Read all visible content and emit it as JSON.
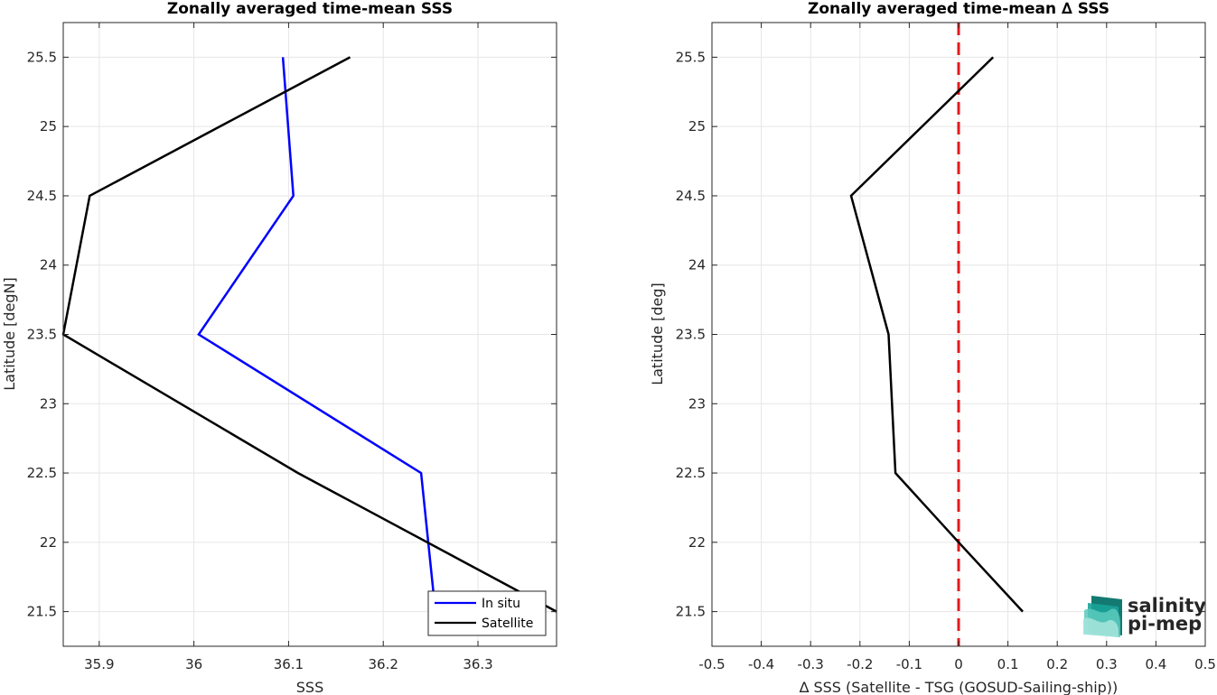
{
  "chart_data": [
    {
      "type": "line",
      "title": "Zonally averaged time-mean SSS",
      "xlabel": "SSS",
      "ylabel": "Latitude [degN]",
      "xlim": [
        35.862,
        36.383
      ],
      "ylim": [
        21.25,
        25.75
      ],
      "x_ticks": [
        "35.9",
        "36",
        "36.1",
        "36.2",
        "36.3"
      ],
      "y_ticks": [
        "21.5",
        "22",
        "22.5",
        "23",
        "23.5",
        "24",
        "24.5",
        "25",
        "25.5"
      ],
      "grid": true,
      "legend_position": "bottom-right",
      "series": [
        {
          "name": "In situ",
          "color": "#0000ff",
          "points": [
            [
              36.255,
              21.5
            ],
            [
              36.24,
              22.5
            ],
            [
              36.005,
              23.5
            ],
            [
              36.105,
              24.5
            ],
            [
              36.094,
              25.5
            ]
          ]
        },
        {
          "name": "Satellite",
          "color": "#000000",
          "points": [
            [
              36.383,
              21.5
            ],
            [
              36.11,
              22.5
            ],
            [
              35.862,
              23.5
            ],
            [
              35.89,
              24.5
            ],
            [
              36.165,
              25.5
            ]
          ]
        }
      ]
    },
    {
      "type": "line",
      "title": "Zonally averaged time-mean ∆ SSS",
      "xlabel": "∆ SSS (Satellite - TSG (GOSUD-Sailing-ship))",
      "ylabel": "Latitude [deg]",
      "xlim": [
        -0.5,
        0.5
      ],
      "ylim": [
        21.25,
        25.75
      ],
      "x_ticks": [
        "-0.5",
        "-0.4",
        "-0.3",
        "-0.2",
        "-0.1",
        "0",
        "0.1",
        "0.2",
        "0.3",
        "0.4",
        "0.5"
      ],
      "y_ticks": [
        "21.5",
        "22",
        "22.5",
        "23",
        "23.5",
        "24",
        "24.5",
        "25",
        "25.5"
      ],
      "grid": true,
      "reference_line": {
        "x": 0,
        "color": "#e41a1c",
        "style": "dashed"
      },
      "series": [
        {
          "color": "#000000",
          "points": [
            [
              0.13,
              21.5
            ],
            [
              0.0,
              22.0
            ],
            [
              -0.128,
              22.5
            ],
            [
              -0.142,
              23.5
            ],
            [
              -0.218,
              24.5
            ],
            [
              0.07,
              25.5
            ]
          ]
        }
      ]
    }
  ],
  "logo": {
    "line1": "salinity",
    "line2": "pi-mep",
    "color1": "#1aa398",
    "color2": "#0f6f6a"
  }
}
